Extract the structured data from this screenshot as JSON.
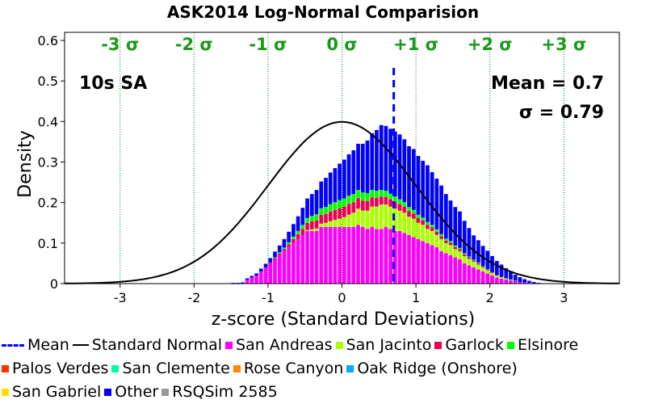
{
  "chart_data": {
    "type": "bar",
    "title": "ASK2014 Log-Normal Comparision",
    "xlabel": "z-score (Standard Deviations)",
    "ylabel": "Density",
    "xlim": [
      -3.75,
      3.75
    ],
    "ylim": [
      0,
      0.62
    ],
    "x_ticks": [
      "-3",
      "-2",
      "-1",
      "0",
      "1",
      "2",
      "3"
    ],
    "y_ticks": [
      "0",
      "0.1",
      "0.2",
      "0.3",
      "0.4",
      "0.5",
      "0.6"
    ],
    "sigma_labels": [
      "-3 σ",
      "-2 σ",
      "-1 σ",
      "0 σ",
      "+1 σ",
      "+2 σ",
      "+3 σ"
    ],
    "annotations": {
      "period": "10s SA",
      "mean": "Mean = 0.7",
      "sigma": "σ = 0.79"
    },
    "mean_value": 0.7,
    "bin_width": 0.0625,
    "bin_start": -2.0,
    "colors": {
      "san_andreas": "#ff00ff",
      "san_jacinto": "#aaff00",
      "garlock": "#ee0055",
      "elsinore": "#00ff00",
      "palos_verdes": "#ff3300",
      "san_clemente": "#00ffaa",
      "rose_canyon": "#ff8800",
      "oak_ridge": "#00aaff",
      "san_gabriel": "#ffdd00",
      "other": "#0000ff",
      "rsqsim": "#999999",
      "mean_line": "#0000ff",
      "normal_curve": "#000000",
      "sigma_lines": "#008000",
      "sigma_text": "#1a9a1a"
    },
    "legend": [
      {
        "label": "Mean",
        "symbol": "dash",
        "color": "#0000ff"
      },
      {
        "label": "Standard Normal",
        "symbol": "line",
        "color": "#000000"
      },
      {
        "label": "San Andreas",
        "symbol": "box",
        "color": "#ff00ff"
      },
      {
        "label": "San Jacinto",
        "symbol": "box",
        "color": "#aaff00"
      },
      {
        "label": "Garlock",
        "symbol": "box",
        "color": "#ee0055"
      },
      {
        "label": "Elsinore",
        "symbol": "box",
        "color": "#00ff00"
      },
      {
        "label": "Palos Verdes",
        "symbol": "box",
        "color": "#ff3300"
      },
      {
        "label": "San Clemente",
        "symbol": "box",
        "color": "#00ffaa"
      },
      {
        "label": "Rose Canyon",
        "symbol": "box",
        "color": "#ff8800"
      },
      {
        "label": "Oak Ridge (Onshore)",
        "symbol": "box",
        "color": "#00aaff"
      },
      {
        "label": "San Gabriel",
        "symbol": "box",
        "color": "#ffdd00"
      },
      {
        "label": "Other",
        "symbol": "box",
        "color": "#0000ff"
      },
      {
        "label": "RSQSim 2585",
        "symbol": "box",
        "color": "#999999"
      }
    ],
    "series": [
      {
        "name": "San Andreas",
        "values": [
          0.0,
          0.0,
          0.0,
          0.0,
          0.0,
          0.0,
          0.0,
          0.0,
          0.0,
          0.0,
          0.0,
          0.01,
          0.015,
          0.02,
          0.03,
          0.04,
          0.05,
          0.06,
          0.07,
          0.08,
          0.09,
          0.1,
          0.11,
          0.12,
          0.13,
          0.13,
          0.13,
          0.14,
          0.14,
          0.14,
          0.14,
          0.14,
          0.14,
          0.14,
          0.14,
          0.145,
          0.14,
          0.135,
          0.14,
          0.135,
          0.135,
          0.14,
          0.135,
          0.13,
          0.13,
          0.125,
          0.12,
          0.115,
          0.11,
          0.105,
          0.1,
          0.095,
          0.09,
          0.08,
          0.075,
          0.07,
          0.065,
          0.06,
          0.05,
          0.045,
          0.04,
          0.035,
          0.03,
          0.025,
          0.02,
          0.015,
          0.012,
          0.01,
          0.008,
          0.006,
          0.004,
          0.003,
          0.002,
          0.001,
          0.0
        ]
      },
      {
        "name": "San Jacinto",
        "values": [
          0.0,
          0.0,
          0.0,
          0.0,
          0.0,
          0.0,
          0.0,
          0.0,
          0.0,
          0.0,
          0.0,
          0.0,
          0.0,
          0.0,
          0.0,
          0.0,
          0.0,
          0.0,
          0.0,
          0.0,
          0.0,
          0.0,
          0.0,
          0.0,
          0.002,
          0.004,
          0.006,
          0.008,
          0.01,
          0.014,
          0.017,
          0.02,
          0.024,
          0.03,
          0.035,
          0.04,
          0.04,
          0.045,
          0.05,
          0.055,
          0.06,
          0.055,
          0.055,
          0.055,
          0.05,
          0.05,
          0.045,
          0.045,
          0.04,
          0.04,
          0.035,
          0.035,
          0.03,
          0.03,
          0.025,
          0.025,
          0.02,
          0.02,
          0.018,
          0.016,
          0.014,
          0.012,
          0.01,
          0.008,
          0.006,
          0.005,
          0.004,
          0.003,
          0.002,
          0.001,
          0.0,
          0.0,
          0.0,
          0.0,
          0.0
        ]
      },
      {
        "name": "Garlock",
        "values": [
          0.0,
          0.0,
          0.0,
          0.0,
          0.0,
          0.0,
          0.0,
          0.0,
          0.0,
          0.0,
          0.0,
          0.0,
          0.0,
          0.0,
          0.0,
          0.0,
          0.002,
          0.003,
          0.004,
          0.005,
          0.007,
          0.01,
          0.012,
          0.015,
          0.018,
          0.02,
          0.02,
          0.022,
          0.022,
          0.024,
          0.025,
          0.026,
          0.026,
          0.027,
          0.026,
          0.026,
          0.025,
          0.024,
          0.023,
          0.022,
          0.02,
          0.019,
          0.018,
          0.017,
          0.016,
          0.015,
          0.014,
          0.013,
          0.012,
          0.011,
          0.01,
          0.009,
          0.008,
          0.007,
          0.006,
          0.006,
          0.005,
          0.005,
          0.004,
          0.004,
          0.003,
          0.003,
          0.002,
          0.002,
          0.001,
          0.001,
          0.001,
          0.0,
          0.0,
          0.0,
          0.0,
          0.0,
          0.0,
          0.0,
          0.0
        ]
      },
      {
        "name": "Elsinore",
        "values": [
          0.0,
          0.0,
          0.0,
          0.0,
          0.0,
          0.0,
          0.0,
          0.0,
          0.0,
          0.0,
          0.0,
          0.0,
          0.0,
          0.0,
          0.0,
          0.0,
          0.0,
          0.002,
          0.003,
          0.004,
          0.005,
          0.006,
          0.008,
          0.01,
          0.012,
          0.013,
          0.015,
          0.016,
          0.017,
          0.018,
          0.019,
          0.02,
          0.02,
          0.02,
          0.02,
          0.02,
          0.02,
          0.019,
          0.018,
          0.017,
          0.016,
          0.015,
          0.014,
          0.013,
          0.012,
          0.011,
          0.01,
          0.009,
          0.008,
          0.007,
          0.007,
          0.006,
          0.006,
          0.005,
          0.005,
          0.004,
          0.004,
          0.003,
          0.003,
          0.002,
          0.002,
          0.002,
          0.001,
          0.001,
          0.001,
          0.0,
          0.0,
          0.0,
          0.0,
          0.0,
          0.0,
          0.0,
          0.0,
          0.0,
          0.0
        ]
      },
      {
        "name": "Other",
        "values": [
          0.0,
          0.0,
          0.0,
          0.0,
          0.0,
          0.0,
          0.001,
          0.001,
          0.002,
          0.002,
          0.003,
          0.003,
          0.004,
          0.005,
          0.007,
          0.009,
          0.011,
          0.014,
          0.017,
          0.021,
          0.026,
          0.031,
          0.036,
          0.042,
          0.048,
          0.054,
          0.06,
          0.066,
          0.072,
          0.078,
          0.084,
          0.09,
          0.096,
          0.102,
          0.108,
          0.114,
          0.12,
          0.13,
          0.14,
          0.15,
          0.16,
          0.16,
          0.16,
          0.16,
          0.16,
          0.155,
          0.15,
          0.15,
          0.145,
          0.14,
          0.14,
          0.13,
          0.125,
          0.12,
          0.11,
          0.1,
          0.095,
          0.09,
          0.08,
          0.07,
          0.06,
          0.055,
          0.05,
          0.045,
          0.04,
          0.035,
          0.03,
          0.025,
          0.02,
          0.015,
          0.012,
          0.008,
          0.005,
          0.003,
          0.002
        ]
      }
    ]
  }
}
